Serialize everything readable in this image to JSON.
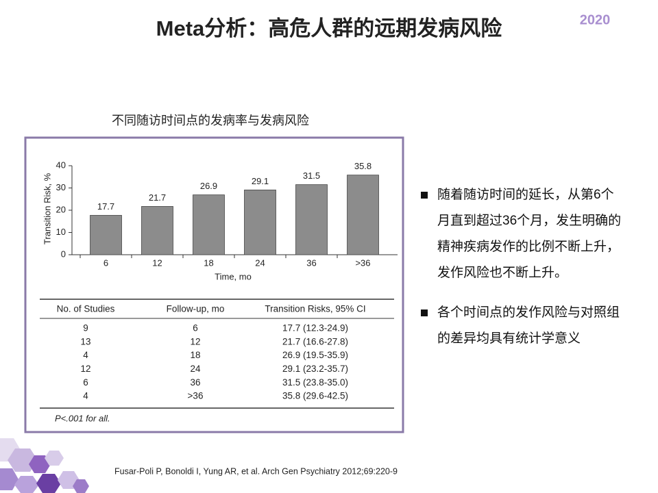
{
  "title": "Meta分析：高危人群的远期发病风险",
  "badge": "2020",
  "subtitle": "不同随访时间点的发病率与发病风险",
  "chart_data": {
    "type": "bar",
    "categories": [
      "6",
      "12",
      "18",
      "24",
      "36",
      ">36"
    ],
    "values": [
      17.7,
      21.7,
      26.9,
      29.1,
      31.5,
      35.8
    ],
    "color": "#8c8c8c",
    "ylim": [
      0,
      40
    ],
    "yticks": [
      0,
      10,
      20,
      30,
      40
    ],
    "ylabel": "Transition Risk, %",
    "xlabel": "Time, mo"
  },
  "table": {
    "header": [
      "No. of Studies",
      "Follow-up, mo",
      "Transition Risks, 95% CI"
    ],
    "rows": [
      [
        "9",
        "6",
        "17.7 (12.3-24.9)"
      ],
      [
        "13",
        "12",
        "21.7 (16.6-27.8)"
      ],
      [
        "4",
        "18",
        "26.9 (19.5-35.9)"
      ],
      [
        "12",
        "24",
        "29.1 (23.2-35.7)"
      ],
      [
        "6",
        "36",
        "31.5 (23.8-35.0)"
      ],
      [
        "4",
        ">36",
        "35.8 (29.6-42.5)"
      ]
    ],
    "footnote": "P<.001 for all."
  },
  "bullets": [
    "随着随访时间的延长，从第6个月直到超过36个月，发生明确的精神疾病发作的比例不断上升，发作风险也不断上升。",
    "各个时间点的发作风险与对照组的差异均具有统计学意义"
  ],
  "citation": "Fusar-Poli P, Bonoldi I, Yung AR, et al. Arch Gen Psychiatry 2012;69:220-9"
}
